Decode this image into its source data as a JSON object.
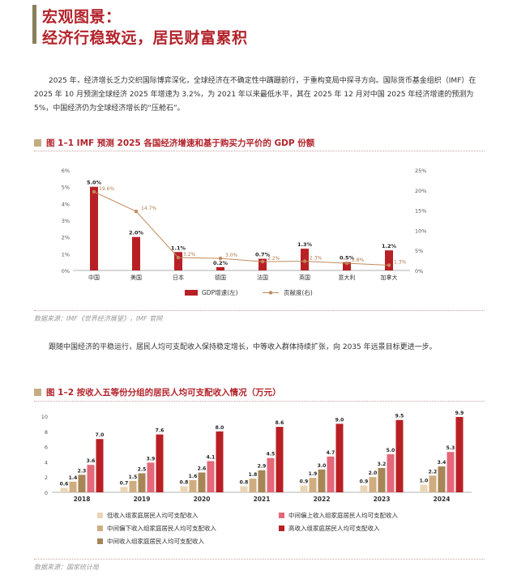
{
  "header": {
    "title_line1": "宏观图景：",
    "title_line2": "经济行稳致远，居民财富累积"
  },
  "paragraphs": {
    "p1": "2025 年，经济增长乏力交织国际博弈深化，全球经济在不确定性中蹒跚前行，于重构变局中探寻方向。国际货币基金组织（IMF）在 2025 年 10 月预测全球经济 2025 年增速为 3.2%，为 2021 年以来最低水平，其在 2025 年 12 月对中国 2025 年经济增速的预测为 5%，中国经济仍为全球经济增长的“压舱石”。",
    "p2": "跟随中国经济的平稳运行，居民人均可支配收入保持稳定增长，中等收入群体持续扩张，向 2035 年远景目标更进一步。"
  },
  "figure1": {
    "heading": "图 1–1  IMF 预测 2025 各国经济增速和基于购买力平价的 GDP 份额",
    "source": "数据来源：IMF《世界经济展望》，IMF 官网"
  },
  "figure2": {
    "heading": "图 1–2  按收入五等份分组的居民人均可支配收入情况（万元）",
    "source": "数据来源：国家统计局"
  },
  "chart_data": [
    {
      "type": "bar",
      "categories": [
        "中国",
        "美国",
        "日本",
        "德国",
        "法国",
        "英国",
        "意大利",
        "加拿大"
      ],
      "series": [
        {
          "name": "GDP增速(左)",
          "type": "bar",
          "axis": "left",
          "values": [
            5.0,
            2.0,
            1.1,
            0.2,
            0.7,
            1.3,
            0.5,
            1.2
          ],
          "labels": [
            "5.0%",
            "2.0%",
            "1.1%",
            "0.2%",
            "0.7%",
            "1.3%",
            "0.5%",
            "1.2%"
          ],
          "color": "#b82025"
        },
        {
          "name": "贡献度(右)",
          "type": "line",
          "axis": "right",
          "values": [
            19.6,
            14.7,
            3.2,
            3.0,
            2.2,
            2.3,
            1.8,
            1.3
          ],
          "labels": [
            "19.6%",
            "14.7%",
            "3.2%",
            "3.0%",
            "2.2%",
            "2.3%",
            "1.8%",
            "1.3%"
          ],
          "color": "#c08a5a"
        }
      ],
      "y_left": {
        "ylim": [
          0,
          6
        ],
        "ticks": [
          "0%",
          "1%",
          "2%",
          "3%",
          "4%",
          "5%",
          "6%"
        ]
      },
      "y_right": {
        "ylim": [
          0,
          25
        ],
        "ticks": [
          "0%",
          "5%",
          "10%",
          "15%",
          "20%",
          "25%"
        ]
      },
      "legend": "bottom"
    },
    {
      "type": "bar",
      "categories": [
        "2018",
        "2019",
        "2020",
        "2021",
        "2022",
        "2023",
        "2024"
      ],
      "series": [
        {
          "name": "低收入组家庭居民人均可支配收入",
          "values": [
            0.6,
            0.7,
            0.8,
            0.8,
            0.9,
            0.9,
            1.0
          ],
          "color": "#ead5b6"
        },
        {
          "name": "中间偏下收入组家庭居民人均可支配收入",
          "values": [
            1.4,
            1.5,
            1.6,
            1.8,
            1.9,
            2.0,
            2.2
          ],
          "color": "#d0ad80"
        },
        {
          "name": "中间收入组家庭居民人均可支配收入",
          "values": [
            2.3,
            2.5,
            2.6,
            2.9,
            3.0,
            3.2,
            3.4
          ],
          "color": "#a78556"
        },
        {
          "name": "中间偏上收入组家庭居民人均可支配收入",
          "values": [
            3.6,
            3.9,
            4.1,
            4.5,
            4.7,
            5.0,
            5.3
          ],
          "color": "#e4687a"
        },
        {
          "name": "高收入组家庭居民人均可支配收入",
          "values": [
            7.0,
            7.6,
            8.0,
            8.6,
            9.0,
            9.5,
            9.9
          ],
          "color": "#b82025"
        }
      ],
      "ylim": [
        0,
        10
      ],
      "yticks": [
        "0",
        "2",
        "4",
        "6",
        "8",
        "10"
      ],
      "legend": "bottom"
    }
  ]
}
